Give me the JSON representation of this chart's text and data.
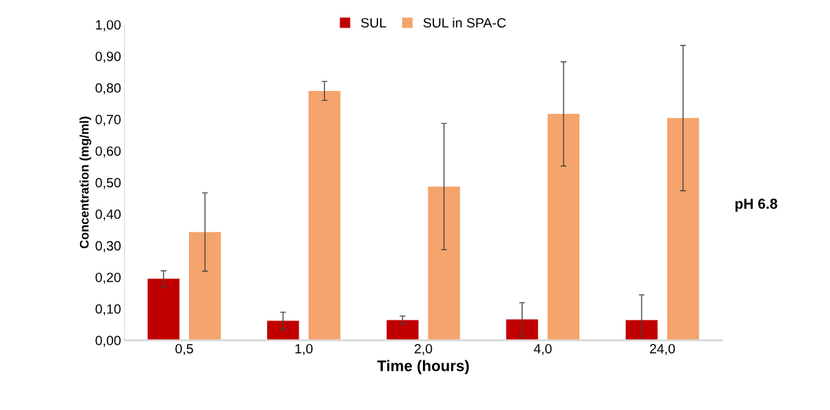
{
  "chart_data": {
    "type": "bar",
    "xlabel": "Time (hours)",
    "ylabel": "Concentration (mg/ml)",
    "categories": [
      "0,5",
      "1,0",
      "2,0",
      "4,0",
      "24,0"
    ],
    "series": [
      {
        "name": "SUL",
        "color": "#c00000",
        "values": [
          0.195,
          0.062,
          0.064,
          0.066,
          0.064
        ],
        "errors": [
          0.025,
          0.027,
          0.013,
          0.053,
          0.08
        ]
      },
      {
        "name": "SUL in SPA-C",
        "color": "#f4a46c",
        "values": [
          0.343,
          0.79,
          0.487,
          0.717,
          0.704
        ],
        "errors": [
          0.124,
          0.03,
          0.2,
          0.165,
          0.23
        ]
      }
    ],
    "ylim": [
      0,
      1
    ],
    "yticks": [
      {
        "value": 0,
        "label": "0,00"
      },
      {
        "value": 0.1,
        "label": "0,10"
      },
      {
        "value": 0.2,
        "label": "0,20"
      },
      {
        "value": 0.3,
        "label": "0,30"
      },
      {
        "value": 0.4,
        "label": "0,40"
      },
      {
        "value": 0.5,
        "label": "0,50"
      },
      {
        "value": 0.6,
        "label": "0,60"
      },
      {
        "value": 0.7,
        "label": "0,70"
      },
      {
        "value": 0.8,
        "label": "0,80"
      },
      {
        "value": 0.9,
        "label": "0,90"
      },
      {
        "value": 1,
        "label": "1,00"
      }
    ],
    "annotations": [
      "pH 6.8"
    ],
    "legend": "top",
    "grid": false
  }
}
